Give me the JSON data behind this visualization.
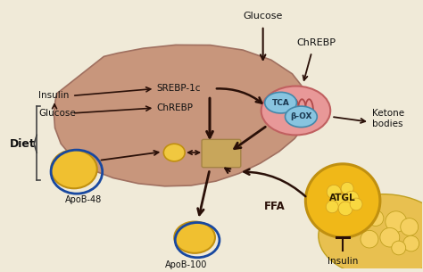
{
  "bg_color": "#f0ead8",
  "liver_color": "#c8967c",
  "liver_edge_color": "#a07060",
  "mito_color": "#e89898",
  "mito_edge": "#c06060",
  "mito_ridge": "#b04848",
  "tca_color": "#88c4e0",
  "tca_edge": "#4488aa",
  "box_color": "#c89858",
  "box_edge": "#a07030",
  "arrow_color": "#2a1008",
  "fat_yellow": "#f0c030",
  "fat_edge": "#c09010",
  "apob_outline": "#1848a0",
  "atgl_fill": "#f0b818",
  "atgl_edge": "#c09010",
  "atgl_inner": "#f8d840",
  "adipose_fill": "#e8c050",
  "adipose_edge": "#c0a020",
  "adipose_cell": "#f5d060",
  "small_lipo": "#f0c840",
  "tg_box": "#c8a858",
  "tg_box_edge": "#a08040",
  "labels": {
    "glucose_top": "Glucose",
    "chrebp_top": "ChREBP",
    "insulin_left": "Insulin",
    "glucose_left": "Glucose",
    "diet": "Diet",
    "srebp": "SREBP-1c",
    "chrebp": "ChREBP",
    "tca": "TCA",
    "box": "β-OX",
    "ketone": "Ketone\nbodies",
    "ffa": "FFA",
    "atgl": "ATGL",
    "insulin_bot": "Insulin",
    "apob48": "ApoB-48",
    "apob100": "ApoB-100"
  }
}
